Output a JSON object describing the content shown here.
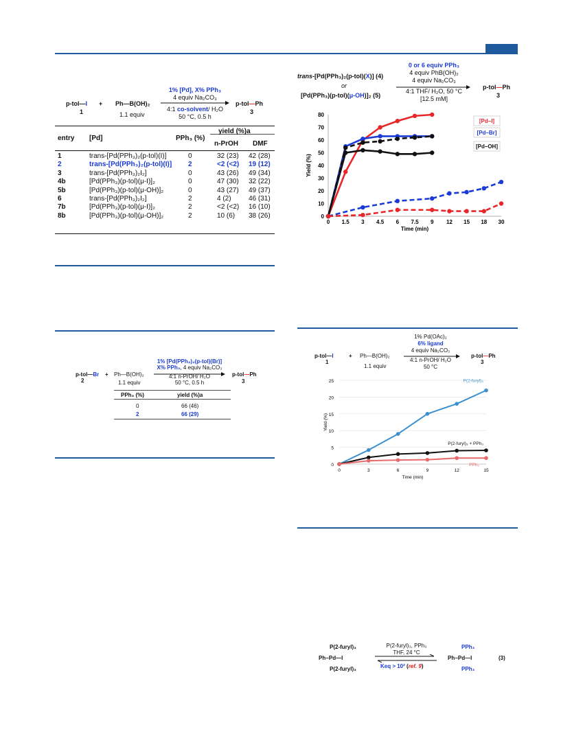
{
  "scheme_top": {
    "left_reagent": "p-tol",
    "iodide": "I",
    "left_num": "1",
    "plus": "+",
    "boronic": "Ph",
    "boronic_tail": "B(OH)₂",
    "boronic_equiv": "1.1 equiv",
    "cond_line1": "1% [Pd], X% PPh₃",
    "cond_line2": "4 equiv Na₂CO₃",
    "cond_line3a": "4:1 ",
    "cond_line3b": "co-solvent",
    "cond_line3c": "/ H₂O",
    "cond_line4": "50 °C, 0.5 h",
    "product": "p-tol",
    "product_tail": "Ph",
    "product_num": "3"
  },
  "table1": {
    "headers": {
      "entry": "entry",
      "pd": "[Pd]",
      "pph3": "PPh₃ (%)",
      "yield": "yield (%)a",
      "sub1": "n-PrOH",
      "sub2": "DMF"
    },
    "rows": [
      {
        "entry": "1",
        "pd": "trans-[Pd(PPh₃)₂(p-tol)(I)]",
        "pph3": "0",
        "y1": "32 (23)",
        "y2": "42 (28)",
        "hl": false
      },
      {
        "entry": "2",
        "pd": "trans-[Pd(PPh₃)₂(p-tol)(I)]",
        "pph3": "2",
        "y1": "<2 (<2)",
        "y2": "19 (12)",
        "hl": true
      },
      {
        "entry": "3",
        "pd": "trans-[Pd(PPh₃)₂I₂]",
        "pph3": "0",
        "y1": "43 (26)",
        "y2": "49 (34)",
        "hl": false
      },
      {
        "entry": "4b",
        "pd": "[Pd(PPh₃)(p-tol)(μ-I)]₂",
        "pph3": "0",
        "y1": "47 (30)",
        "y2": "32 (22)",
        "hl": false
      },
      {
        "entry": "5b",
        "pd": "[Pd(PPh₃)(p-tol)(μ-OH)]₂",
        "pph3": "0",
        "y1": "43 (27)",
        "y2": "49 (37)",
        "hl": false
      },
      {
        "entry": "6",
        "pd": "trans-[Pd(PPh₃)₂I₂]",
        "pph3": "2",
        "y1": "4 (2)",
        "y2": "46 (31)",
        "hl": false
      },
      {
        "entry": "7b",
        "pd": "[Pd(PPh₃)(p-tol)(μ-I)]₂",
        "pph3": "2",
        "y1": "<2 (<2)",
        "y2": "16 (10)",
        "hl": false
      },
      {
        "entry": "8b",
        "pd": "[Pd(PPh₃)(p-tol)(μ-OH)]₂",
        "pph3": "2",
        "y1": "10 (6)",
        "y2": "38 (26)",
        "hl": false
      }
    ]
  },
  "scheme_mid": {
    "reagent": "p-tol",
    "bromide": "Br",
    "num": "2",
    "plus": "+",
    "boronic": "Ph",
    "boronic_tail": "B(OH)₂",
    "equiv": "1.1 equiv",
    "cond1": "1% [Pd(PPh₃)₂(p-tol)(Br)]",
    "cond2a": "X% PPh₃",
    "cond2b": ", 4 equiv Na₂CO₃",
    "cond3": "4:1 n-PrOH/ H₂O",
    "cond4": "50 °C, 0.5 h",
    "product": "p-tol",
    "product_tail": "Ph",
    "product_num": "3",
    "col1": "PPh₃ (%)",
    "col2": "yield (%)a",
    "rows": [
      {
        "a": "0",
        "b": "66 (46)",
        "hl": false
      },
      {
        "a": "2",
        "b": "66 (29)",
        "hl": true
      }
    ]
  },
  "scheme_right": {
    "r1a": "trans",
    "r1b": "-[Pd(PPh₃)₂(p-tol)(",
    "r1x": "X",
    "r1c": ")] (4)",
    "or": "or",
    "r2a": "[Pd(PPh₃)(p-tol)(",
    "r2x": "μ-OH",
    "r2c": ")]₂ (5)",
    "c1": "0 or 6 equiv PPh₃",
    "c2": "4 equiv PhB(OH)₂",
    "c3": "4 equiv Na₂CO₃",
    "c4": "4:1 THF/ H₂O, 50 °C",
    "c5": "[12.5 mM]",
    "product": "p-tol",
    "product_tail": "Ph",
    "product_num": "3"
  },
  "scheme_bottom_right": {
    "reagent": "p-tol",
    "iodide": "I",
    "num": "1",
    "plus": "+",
    "boronic": "Ph",
    "boronic_tail": "B(OH)₂",
    "equiv": "1.1 equiv",
    "c1": "1% Pd(OAc)₂",
    "c2": "6% ligand",
    "c3": "4 equiv Na₂CO₃",
    "c4": "4:1 n-PrOH/ H₂O",
    "c5": "50 °C",
    "product": "p-tol",
    "product_tail": "Ph",
    "product_num": "3"
  },
  "equilibrium": {
    "left_top": "P(2-furyl)₃",
    "left_mid": "Ph−Pd—I",
    "left_bot": "P(2-furyl)₃",
    "arrow_top1": "P(2-furyl)₃, PPh₃",
    "arrow_top2": "THF, 24 °C",
    "keq": "Keq > 10²",
    "ref": "ref. 9",
    "right_top": "PPh₃",
    "right_mid": "Ph−Pd—I",
    "right_bot": "PPh₃",
    "eq_num": "(3)"
  },
  "chart_data": [
    {
      "type": "line",
      "xlabel": "Time (min)",
      "ylabel": "Yield (%)",
      "x_ticks": [
        "0",
        "1.5",
        "3",
        "4.5",
        "6",
        "7.5",
        "9",
        "12",
        "15",
        "18",
        "30"
      ],
      "ylim": [
        0,
        80
      ],
      "y_ticks": [
        0,
        10,
        20,
        30,
        40,
        50,
        60,
        70,
        80
      ],
      "legend": [
        "[Pd–I]",
        "[Pd–Br]",
        "[Pd–OH]"
      ],
      "series": [
        {
          "name": "[Pd–I]",
          "color": "#e8262a",
          "dashed": false,
          "x": [
            "0",
            "1.5",
            "3",
            "4.5",
            "6",
            "7.5",
            "9"
          ],
          "values": [
            0,
            35,
            60,
            70,
            75,
            79,
            80
          ]
        },
        {
          "name": "[Pd–Br]",
          "color": "#1a3bd6",
          "dashed": false,
          "x": [
            "0",
            "1.5",
            "3",
            "4.5",
            "6",
            "7.5",
            "9"
          ],
          "values": [
            0,
            55,
            61,
            63,
            63,
            63,
            63
          ]
        },
        {
          "name": "[Pd–OH]",
          "color": "#111111",
          "dashed": false,
          "x": [
            "0",
            "1.5",
            "3",
            "4.5",
            "6",
            "7.5",
            "9"
          ],
          "values": [
            0,
            50,
            52,
            51,
            49,
            49,
            50
          ]
        },
        {
          "color": "#111111",
          "dashed": true,
          "x": [
            "0",
            "1.5",
            "3",
            "4.5",
            "6",
            "7.5",
            "9"
          ],
          "values": [
            0,
            54,
            58,
            59,
            61,
            62,
            63
          ]
        },
        {
          "color": "#1a3bd6",
          "dashed": true,
          "x": [
            "0",
            "3",
            "6",
            "9",
            "12",
            "15",
            "18",
            "30"
          ],
          "values": [
            0,
            7,
            12,
            14,
            18,
            19,
            22,
            27
          ]
        },
        {
          "color": "#e8262a",
          "dashed": true,
          "x": [
            "0",
            "3",
            "6",
            "9",
            "12",
            "15",
            "18",
            "30"
          ],
          "values": [
            0,
            1,
            5,
            5,
            4,
            4,
            4,
            10
          ]
        }
      ]
    },
    {
      "type": "line",
      "xlabel": "Time (min)",
      "ylabel": "Yield (%)",
      "x": [
        0,
        3,
        6,
        9,
        12,
        15
      ],
      "xlim": [
        0,
        15
      ],
      "ylim": [
        0,
        25
      ],
      "y_ticks": [
        0,
        5,
        10,
        15,
        20,
        25
      ],
      "series": [
        {
          "name": "P(2-furyl)₃",
          "color": "#3a8fd0",
          "values": [
            0,
            4.2,
            9,
            15,
            18,
            22
          ]
        },
        {
          "name": "P(2-furyl)₃ + PPh₃",
          "color": "#111111",
          "values": [
            0,
            2,
            3,
            3.3,
            4,
            4.1
          ]
        },
        {
          "name": "PPh₃",
          "color": "#e86a6a",
          "values": [
            0,
            1,
            1.2,
            1.3,
            1.8,
            1.8
          ]
        }
      ]
    }
  ]
}
